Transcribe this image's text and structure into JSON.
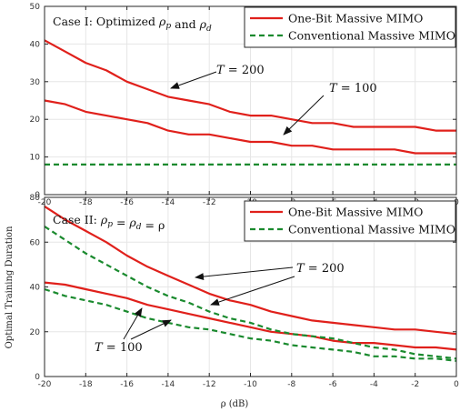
{
  "y_shared_label": "Optimal Training Duration",
  "x_shared_label": "ρ (dB)",
  "chart_data": [
    {
      "type": "line",
      "title": "Case I: Optimized ρ_p and ρ_d",
      "xlabel": "",
      "ylabel": "Optimal Training Duration",
      "xlim": [
        -20,
        0
      ],
      "ylim": [
        0,
        50
      ],
      "grid": true,
      "legend_position": "top-right",
      "x_ticks": [
        "-20",
        "-18",
        "-16",
        "-14",
        "-12",
        "-10",
        "-8",
        "-6",
        "-4",
        "-2",
        "0"
      ],
      "y_ticks": [
        "0",
        "10",
        "20",
        "30",
        "40",
        "50"
      ],
      "legend": [
        "One-Bit Massive MIMO",
        "Conventional Massive MIMO"
      ],
      "series": [
        {
          "name": "One-Bit Massive MIMO",
          "color": "#e0201b",
          "style": "solid",
          "x": [
            -20,
            -19,
            -18,
            -17,
            -16,
            -15,
            -14,
            -13,
            -12,
            -11,
            -10,
            -9,
            -8,
            -7,
            -6,
            -5,
            -4,
            -3,
            -2,
            -1,
            0
          ],
          "y": [
            41,
            38,
            35,
            33,
            30,
            28,
            26,
            25,
            24,
            22,
            21,
            21,
            20,
            19,
            19,
            18,
            18,
            18,
            18,
            17,
            17
          ]
        },
        {
          "name": "One-Bit Massive MIMO",
          "color": "#e0201b",
          "style": "solid",
          "x": [
            -20,
            -19,
            -18,
            -17,
            -16,
            -15,
            -14,
            -13,
            -12,
            -11,
            -10,
            -9,
            -8,
            -7,
            -6,
            -5,
            -4,
            -3,
            -2,
            -1,
            0
          ],
          "y": [
            25,
            24,
            22,
            21,
            20,
            19,
            17,
            16,
            16,
            15,
            14,
            14,
            13,
            13,
            12,
            12,
            12,
            12,
            11,
            11,
            11
          ]
        },
        {
          "name": "Conventional Massive MIMO",
          "color": "#1a8a2e",
          "style": "dashed",
          "x": [
            -20,
            0
          ],
          "y": [
            8,
            8
          ]
        }
      ],
      "annotations": [
        {
          "text": "T = 200",
          "points_to": [
            -14,
            26
          ]
        },
        {
          "text": "T = 100",
          "points_to": [
            -8,
            13
          ]
        }
      ]
    },
    {
      "type": "line",
      "title": "Case II: ρ_p = ρ_d = ρ",
      "xlabel": "ρ (dB)",
      "ylabel": "Optimal Training Duration",
      "xlim": [
        -20,
        0
      ],
      "ylim": [
        0,
        80
      ],
      "grid": true,
      "legend_position": "top-right",
      "x_ticks": [
        "-20",
        "-18",
        "-16",
        "-14",
        "-12",
        "-10",
        "-8",
        "-6",
        "-4",
        "-2",
        "0"
      ],
      "y_ticks": [
        "0",
        "20",
        "40",
        "60",
        "80"
      ],
      "legend": [
        "One-Bit Massive MIMO",
        "Conventional Massive MIMO"
      ],
      "series": [
        {
          "name": "One-Bit Massive MIMO",
          "color": "#e0201b",
          "style": "solid",
          "x": [
            -20,
            -19,
            -18,
            -17,
            -16,
            -15,
            -14,
            -13,
            -12,
            -11,
            -10,
            -9,
            -8,
            -7,
            -6,
            -5,
            -4,
            -3,
            -2,
            -1,
            0
          ],
          "y": [
            76,
            70,
            65,
            60,
            54,
            49,
            45,
            41,
            37,
            34,
            32,
            29,
            27,
            25,
            24,
            23,
            22,
            21,
            21,
            20,
            19
          ]
        },
        {
          "name": "One-Bit Massive MIMO",
          "color": "#e0201b",
          "style": "solid",
          "x": [
            -20,
            -19,
            -18,
            -17,
            -16,
            -15,
            -14,
            -13,
            -12,
            -11,
            -10,
            -9,
            -8,
            -7,
            -6,
            -5,
            -4,
            -3,
            -2,
            -1,
            0
          ],
          "y": [
            42,
            41,
            39,
            37,
            35,
            32,
            30,
            28,
            26,
            24,
            22,
            20,
            19,
            18,
            16,
            15,
            15,
            14,
            13,
            13,
            12
          ]
        },
        {
          "name": "Conventional Massive MIMO",
          "color": "#1a8a2e",
          "style": "dashed",
          "x": [
            -20,
            -19,
            -18,
            -17,
            -16,
            -15,
            -14,
            -13,
            -12,
            -11,
            -10,
            -9,
            -8,
            -7,
            -6,
            -5,
            -4,
            -3,
            -2,
            -1,
            0
          ],
          "y": [
            67,
            61,
            55,
            50,
            45,
            40,
            36,
            33,
            29,
            26,
            24,
            21,
            19,
            18,
            17,
            15,
            13,
            12,
            10,
            9,
            8
          ]
        },
        {
          "name": "Conventional Massive MIMO",
          "color": "#1a8a2e",
          "style": "dashed",
          "x": [
            -20,
            -19,
            -18,
            -17,
            -16,
            -15,
            -14,
            -13,
            -12,
            -11,
            -10,
            -9,
            -8,
            -7,
            -6,
            -5,
            -4,
            -3,
            -2,
            -1,
            0
          ],
          "y": [
            39,
            36,
            34,
            32,
            29,
            26,
            24,
            22,
            21,
            19,
            17,
            16,
            14,
            13,
            12,
            11,
            9,
            9,
            8,
            8,
            7
          ]
        }
      ],
      "annotations": [
        {
          "text": "T = 200",
          "points_to": [
            [
              -14,
              45
            ],
            [
              -12,
              29
            ]
          ]
        },
        {
          "text": "T = 100",
          "points_to": [
            [
              -15,
              32
            ],
            [
              -14,
              24
            ]
          ]
        }
      ]
    }
  ]
}
